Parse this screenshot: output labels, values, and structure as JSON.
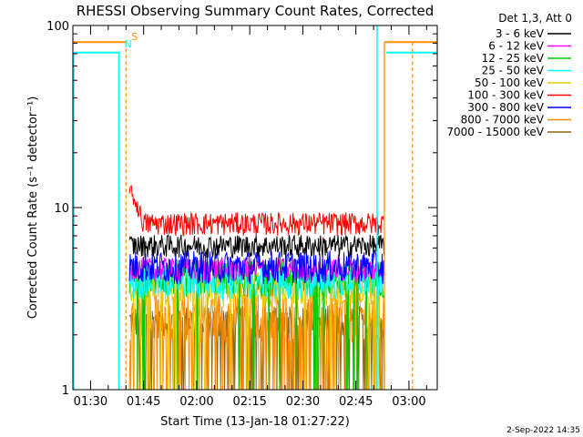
{
  "chart_data": {
    "type": "line",
    "title": "RHESSI Observing Summary Count Rates, Corrected",
    "xlabel": "Start Time (13-Jan-18 01:27:22)",
    "ylabel": "Corrected Count Rate (s⁻¹ detector⁻¹)",
    "yscale": "log",
    "ylim": [
      1,
      100
    ],
    "xlim": [
      "01:25",
      "03:08"
    ],
    "x_ticks": [
      "01:30",
      "01:45",
      "02:00",
      "02:15",
      "02:30",
      "02:45",
      "03:00"
    ],
    "y_ticks": [
      "1",
      "10",
      "100"
    ],
    "legend_header": "Det 1,3, Att 0",
    "legend_position": "top-right",
    "series": [
      {
        "name": "3 - 6 keV",
        "color": "#000000",
        "level": 6.2,
        "spread": 0.9
      },
      {
        "name": "6 - 12 keV",
        "color": "#ff00ff",
        "level": 4.6,
        "spread": 0.7
      },
      {
        "name": "12 - 25 keV",
        "color": "#00c800",
        "level": 4.2,
        "spread": 1.0
      },
      {
        "name": "25 - 50 keV",
        "color": "#00ffff",
        "level": 4.0,
        "spread": 0.9
      },
      {
        "name": "50 - 100 keV",
        "color": "#e6c800",
        "level": 3.6,
        "spread": 0.8
      },
      {
        "name": "100 - 300 keV",
        "color": "#ff0000",
        "level": 8.2,
        "spread": 1.2
      },
      {
        "name": "300 - 800 keV",
        "color": "#0000ff",
        "level": 4.8,
        "spread": 1.0
      },
      {
        "name": "800 - 7000 keV",
        "color": "#ff8c00",
        "level": 2.6,
        "spread": 0.8
      },
      {
        "name": "7000 - 15000 keV",
        "color": "#8b6914",
        "level": 2.4,
        "spread": 0.5
      }
    ],
    "data_interval": [
      "01:41",
      "02:53"
    ],
    "markers": [
      {
        "label": "S",
        "color": "#ff8c00",
        "x": "01:40"
      },
      {
        "label": "N",
        "color": "#00ffff",
        "x": "01:38"
      }
    ],
    "timestamp": "2-Sep-2022 14:35"
  }
}
